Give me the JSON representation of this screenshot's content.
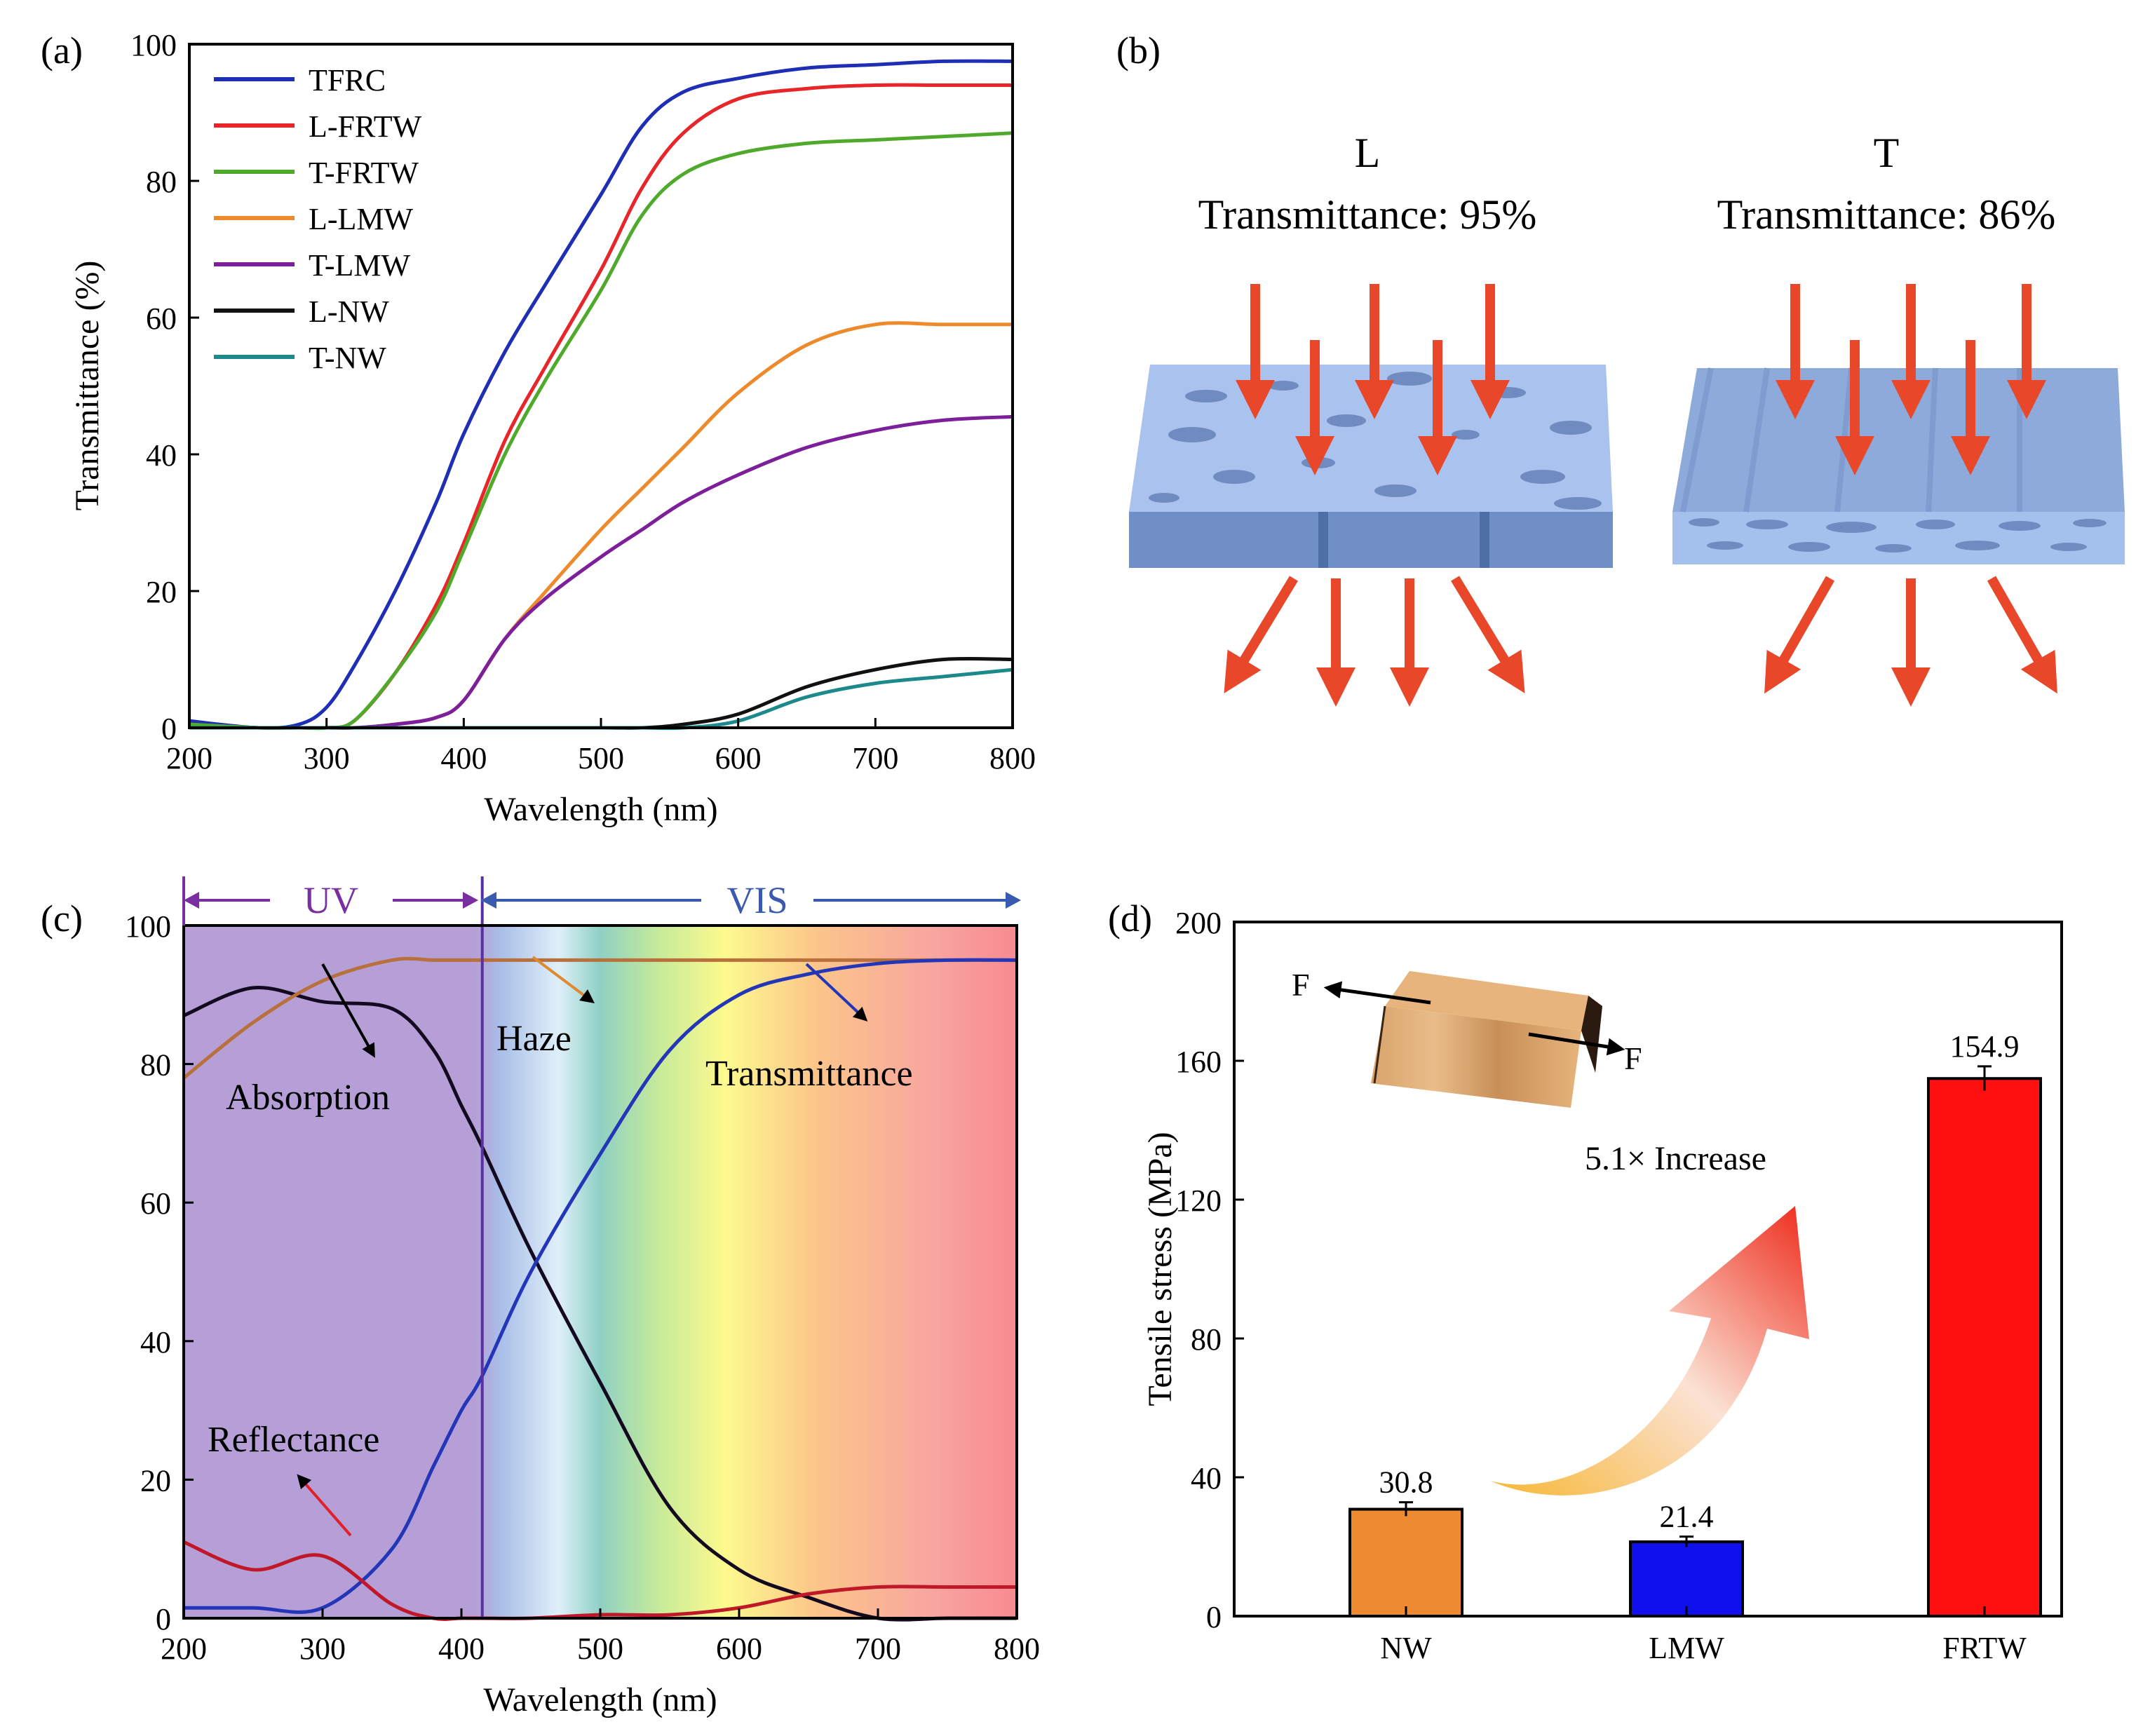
{
  "panel_labels": {
    "a": "(a)",
    "b": "(b)",
    "c": "(c)",
    "d": "(d)"
  },
  "colors": {
    "tfrc": "#1f2fb5",
    "l_frtw": "#e8262a",
    "t_frtw": "#4faa2b",
    "l_lmw": "#ec8a2c",
    "t_lmw": "#7d1f9a",
    "l_nw": "#111111",
    "t_nw": "#1c8a8a",
    "bar_nw": "#ee8a2f",
    "bar_lmw": "#1010ee",
    "bar_frtw": "#ff1010",
    "wood_blue": "#9fbaea",
    "wood_side": "#6f8fc6",
    "arrow_red": "#e8472a"
  },
  "panel_b": {
    "left_title": "L",
    "left_subtitle": "Transmittance: 95%",
    "right_title": "T",
    "right_subtitle": "Transmittance: 86%"
  },
  "chart_data": [
    {
      "id": "a",
      "type": "line",
      "title": "",
      "xlabel": "Wavelength (nm)",
      "ylabel": "Transmittance (%)",
      "xlim": [
        200,
        800
      ],
      "ylim": [
        0,
        100
      ],
      "xticks": [
        200,
        300,
        400,
        500,
        600,
        700,
        800
      ],
      "yticks": [
        0,
        20,
        40,
        60,
        80,
        100
      ],
      "x": [
        200,
        250,
        280,
        300,
        320,
        350,
        380,
        400,
        430,
        460,
        500,
        530,
        560,
        600,
        650,
        700,
        750,
        800
      ],
      "series": [
        {
          "name": "TFRC",
          "color_key": "tfrc",
          "values": [
            1,
            0,
            0.5,
            3,
            9,
            20,
            33,
            43,
            55,
            65,
            78,
            88,
            93,
            95,
            96.5,
            97,
            97.5,
            97.5
          ]
        },
        {
          "name": "L-FRTW",
          "color_key": "l_frtw",
          "values": [
            0.5,
            0,
            0,
            0,
            1,
            8,
            18,
            27,
            42,
            53,
            67,
            79,
            87,
            92,
            93.5,
            94,
            94,
            94
          ]
        },
        {
          "name": "T-FRTW",
          "color_key": "t_frtw",
          "values": [
            0.5,
            0,
            0,
            0,
            1,
            8,
            17,
            26,
            40,
            51,
            64,
            75,
            81,
            84,
            85.5,
            86,
            86.5,
            87
          ]
        },
        {
          "name": "L-LMW",
          "color_key": "l_lmw",
          "values": [
            0,
            0,
            0,
            0,
            0,
            0.5,
            1.5,
            4,
            13,
            20,
            29,
            35,
            41,
            49,
            56,
            59,
            59,
            59
          ]
        },
        {
          "name": "T-LMW",
          "color_key": "t_lmw",
          "values": [
            0,
            0,
            0,
            0,
            0,
            0.5,
            1.5,
            4,
            13,
            19,
            25,
            29,
            33,
            37,
            41,
            43.5,
            45,
            45.5
          ]
        },
        {
          "name": "L-NW",
          "color_key": "l_nw",
          "values": [
            0,
            0,
            0,
            0,
            0,
            0,
            0,
            0,
            0,
            0,
            0,
            0,
            0.5,
            2,
            6,
            8.5,
            10,
            10
          ]
        },
        {
          "name": "T-NW",
          "color_key": "t_nw",
          "values": [
            0,
            0,
            0,
            0,
            0,
            0,
            0,
            0,
            0,
            0,
            0,
            0,
            0,
            1,
            4.5,
            6.5,
            7.5,
            8.5
          ]
        }
      ],
      "legend": "top-left"
    },
    {
      "id": "c",
      "type": "line",
      "title": "",
      "xlabel": "Wavelength (nm)",
      "ylabel": "",
      "xlim": [
        200,
        800
      ],
      "ylim": [
        0,
        100
      ],
      "xticks": [
        200,
        300,
        400,
        500,
        600,
        700,
        800
      ],
      "yticks": [
        0,
        20,
        40,
        60,
        80,
        100
      ],
      "divider_x": 415,
      "regions": [
        {
          "label": "UV",
          "from": 200,
          "to": 415
        },
        {
          "label": "VIS",
          "from": 415,
          "to": 800
        }
      ],
      "x": [
        200,
        250,
        300,
        350,
        380,
        400,
        415,
        450,
        500,
        550,
        600,
        650,
        700,
        750,
        800
      ],
      "series": [
        {
          "name": "Absorption",
          "color": "#140a20",
          "values": [
            87,
            91,
            89,
            88,
            82,
            74,
            68,
            53,
            34,
            16,
            7,
            3,
            0,
            0,
            0
          ]
        },
        {
          "name": "Haze",
          "color": "#b8703c",
          "values": [
            78,
            86,
            92,
            95,
            95,
            95,
            95,
            95,
            95,
            95,
            95,
            95,
            95,
            95,
            95
          ]
        },
        {
          "name": "Transmittance",
          "color": "#2436b8",
          "values": [
            1.5,
            1.5,
            1.5,
            10,
            22,
            30,
            35,
            50,
            67,
            82,
            90,
            93,
            94.5,
            95,
            95
          ]
        },
        {
          "name": "Reflectance",
          "color": "#c01828",
          "values": [
            11,
            7,
            9,
            2,
            0,
            0,
            0,
            0,
            0.5,
            0.5,
            1.5,
            3.5,
            4.5,
            4.5,
            4.5
          ]
        }
      ],
      "annotations": [
        "UV",
        "VIS",
        "Haze",
        "Transmittance",
        "Absorption",
        "Reflectance"
      ]
    },
    {
      "id": "d",
      "type": "bar",
      "title": "",
      "xlabel": "",
      "ylabel": "Tensile stress (MPa)",
      "ylim": [
        0,
        200
      ],
      "yticks": [
        0,
        40,
        80,
        120,
        160,
        200
      ],
      "categories": [
        "NW",
        "LMW",
        "FRTW"
      ],
      "values": [
        30.8,
        21.4,
        154.9
      ],
      "errors": [
        2,
        1.5,
        3.5
      ],
      "value_labels": [
        "30.8",
        "21.4",
        "154.9"
      ],
      "color_keys": [
        "bar_nw",
        "bar_lmw",
        "bar_frtw"
      ],
      "annotation": "5.1× Increase",
      "force_label": "F"
    }
  ]
}
